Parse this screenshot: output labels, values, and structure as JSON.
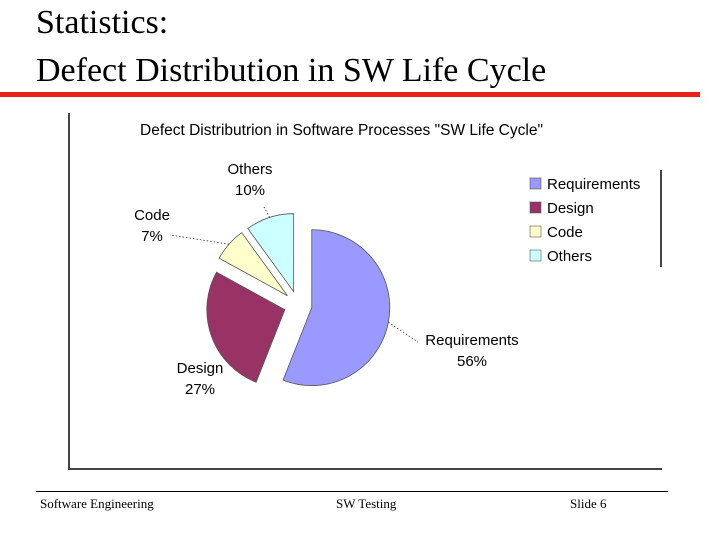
{
  "slide": {
    "title_line1": "Statistics:",
    "title_line2": "Defect Distribution in SW Life Cycle",
    "accent_color": "#e8211d"
  },
  "chart_data": {
    "type": "pie",
    "title": "Defect Distributrion in Software Processes  \"SW Life Cycle\"",
    "legend_position": "right",
    "slices": [
      {
        "label": "Requirements",
        "value": 56,
        "value_label": "56%",
        "color": "#9999ff"
      },
      {
        "label": "Design",
        "value": 27,
        "value_label": "27%",
        "color": "#993366"
      },
      {
        "label": "Code",
        "value": 7,
        "value_label": "7%",
        "color": "#ffffcc"
      },
      {
        "label": "Others",
        "value": 10,
        "value_label": "10%",
        "color": "#ccffff"
      }
    ]
  },
  "footer": {
    "left": "Software Engineering",
    "center": "SW Testing",
    "right": "Slide  6"
  }
}
